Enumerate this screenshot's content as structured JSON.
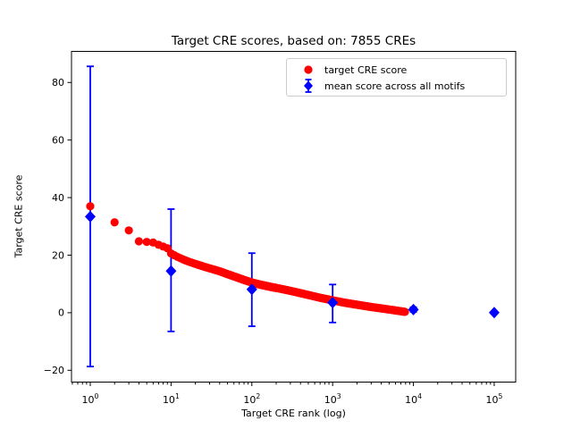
{
  "figure": {
    "title": "Target CRE scores, based on: 7855 CREs",
    "xlabel": "Target CRE rank (log)",
    "ylabel": "Target CRE score",
    "background": "#ffffff"
  },
  "legend": {
    "position": "upper right",
    "entries": [
      {
        "label": "target CRE score",
        "marker": "circle",
        "color": "#ff0000"
      },
      {
        "label": "mean score across all motifs",
        "marker": "diamond-errorbar",
        "color": "#0000ff"
      }
    ]
  },
  "chart_data": {
    "type": "scatter",
    "title": "Target CRE scores, based on: 7855 CREs",
    "xlabel": "Target CRE rank (log)",
    "ylabel": "Target CRE score",
    "x_scale": "log",
    "grid": false,
    "legend_position": "upper right",
    "xlim": [
      0.5857,
      184500
    ],
    "ylim": [
      -24.1,
      90.8
    ],
    "x_tick_exponents": [
      0,
      1,
      2,
      3,
      4,
      5
    ],
    "y_ticks": [
      -20,
      0,
      20,
      40,
      60,
      80
    ],
    "total_cres": 7855,
    "series": [
      {
        "name": "target CRE score",
        "type": "scatter",
        "color": "#ff0000",
        "marker": "circle",
        "marker_radius_px": 4.6,
        "rank_range": [
          1,
          7855
        ],
        "anchor_points": [
          [
            1,
            37.0
          ],
          [
            2,
            31.4
          ],
          [
            3,
            28.6
          ],
          [
            4,
            24.8
          ],
          [
            5,
            24.6
          ],
          [
            6,
            24.4
          ],
          [
            7,
            23.6
          ],
          [
            8,
            23.0
          ],
          [
            9,
            22.4
          ],
          [
            10,
            20.6
          ],
          [
            12,
            19.4
          ],
          [
            15,
            18.2
          ],
          [
            18,
            17.4
          ],
          [
            22,
            16.6
          ],
          [
            27,
            15.8
          ],
          [
            33,
            15.1
          ],
          [
            40,
            14.4
          ],
          [
            50,
            13.4
          ],
          [
            65,
            12.3
          ],
          [
            80,
            11.4
          ],
          [
            100,
            10.5
          ],
          [
            130,
            9.7
          ],
          [
            170,
            9.0
          ],
          [
            220,
            8.4
          ],
          [
            300,
            7.6
          ],
          [
            400,
            6.8
          ],
          [
            550,
            5.9
          ],
          [
            700,
            5.2
          ],
          [
            1000,
            4.3
          ],
          [
            1400,
            3.5
          ],
          [
            2000,
            2.8
          ],
          [
            3000,
            2.0
          ],
          [
            4500,
            1.3
          ],
          [
            6000,
            0.8
          ],
          [
            7855,
            0.3
          ]
        ]
      },
      {
        "name": "mean score across all motifs",
        "type": "errorbar",
        "color": "#0000ff",
        "marker": "diamond",
        "points": [
          {
            "x": 1,
            "mean": 33.4,
            "lo": -18.7,
            "hi": 85.6
          },
          {
            "x": 10,
            "mean": 14.5,
            "lo": -6.5,
            "hi": 36.0
          },
          {
            "x": 100,
            "mean": 8.1,
            "lo": -4.7,
            "hi": 20.7
          },
          {
            "x": 1000,
            "mean": 3.5,
            "lo": -3.4,
            "hi": 9.8
          },
          {
            "x": 10000,
            "mean": 1.1,
            "lo": 0.3,
            "hi": 1.9
          },
          {
            "x": 100000,
            "mean": 0.05,
            "lo": -0.05,
            "hi": 0.15
          }
        ]
      }
    ]
  }
}
